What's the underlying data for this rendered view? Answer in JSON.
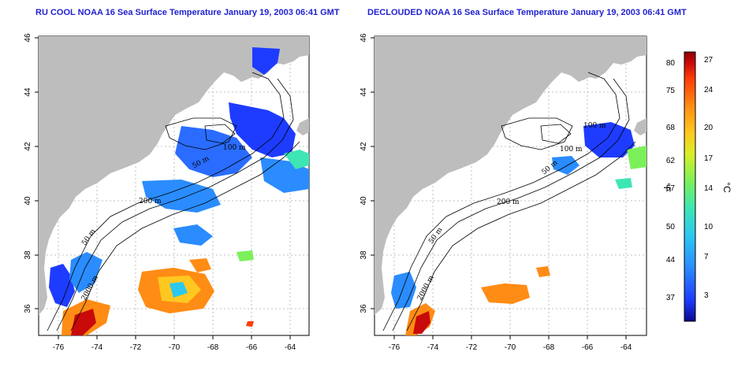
{
  "panels": [
    {
      "title": "RU COOL NOAA 16 Sea Surface Temperature January 19, 2003 06:41 GMT",
      "contour_labels": [
        "200 m",
        "100 m",
        "50 m",
        "50 m",
        "2000 m"
      ]
    },
    {
      "title": "DECLOUDED NOAA 16 Sea Surface Temperature January 19, 2003 06:41 GMT",
      "contour_labels": [
        "200 m",
        "100 m",
        "100 m",
        "50 m",
        "50 m",
        "2000 m"
      ]
    }
  ],
  "axes": {
    "x_ticks": [
      "-76",
      "-74",
      "-72",
      "-70",
      "-68",
      "-66",
      "-64"
    ],
    "y_ticks": [
      "36",
      "38",
      "40",
      "42",
      "44",
      "46"
    ]
  },
  "colorbar": {
    "f_ticks": [
      "80",
      "75",
      "68",
      "62",
      "57",
      "50",
      "44",
      "37"
    ],
    "c_ticks": [
      "27",
      "24",
      "20",
      "17",
      "14",
      "10",
      "7",
      "3"
    ],
    "f_label": "°F",
    "c_label": "°C",
    "colors": [
      "#0a0a8c",
      "#1e3cff",
      "#2a8cff",
      "#2cc8f0",
      "#3ee6b4",
      "#7cf05a",
      "#d8ee2a",
      "#ffc820",
      "#ff8c14",
      "#ff3c0a",
      "#c80a0a",
      "#8c0000"
    ]
  },
  "colors": {
    "land": "#bdbdbd",
    "title": "#1f1fd0"
  }
}
